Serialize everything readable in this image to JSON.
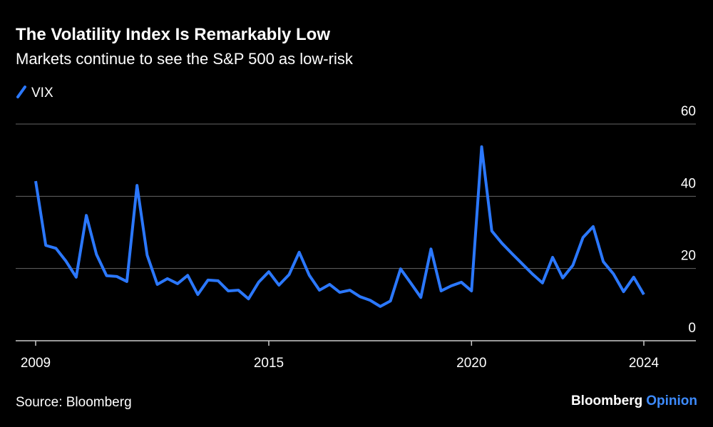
{
  "chart_data": {
    "type": "line",
    "title": "The Volatility Index Is Remarkably Low",
    "subtitle": "Markets continue to see the S&P 500 as low-risk",
    "source": "Source: Bloomberg",
    "brand": [
      "Bloomberg",
      "Opinion"
    ],
    "categories": [
      "2009",
      null,
      null,
      null,
      null,
      null,
      null,
      null,
      null,
      null,
      null,
      null,
      null,
      null,
      null,
      null,
      null,
      null,
      null,
      null,
      null,
      null,
      null,
      "2015",
      null,
      null,
      null,
      null,
      null,
      null,
      null,
      null,
      null,
      null,
      null,
      null,
      null,
      null,
      null,
      null,
      null,
      null,
      null,
      "2020",
      null,
      null,
      null,
      null,
      null,
      null,
      null,
      null,
      null,
      null,
      null,
      null,
      null,
      null,
      null,
      null,
      "2024"
    ],
    "series": [
      {
        "name": "VIX",
        "color": "#2b78ff",
        "values": [
          44.2,
          26.4,
          25.6,
          22,
          17.6,
          34.7,
          23.9,
          18,
          17.8,
          16.4,
          43,
          23.7,
          15.6,
          17.2,
          15.8,
          18.1,
          12.8,
          16.8,
          16.6,
          13.8,
          14,
          11.6,
          16.2,
          19.1,
          15.4,
          18.3,
          24.5,
          18.1,
          14,
          15.6,
          13.4,
          14,
          12.2,
          11.2,
          9.5,
          11,
          19.9,
          16,
          12,
          25.4,
          13.8,
          15.2,
          16.2,
          13.8,
          53.7,
          30.4,
          27,
          24.1,
          21.3,
          18.5,
          16,
          23.1,
          17.4,
          20.9,
          28.6,
          31.6,
          21.9,
          18.5,
          13.6,
          17.6,
          12.8
        ]
      }
    ],
    "ylim": [
      0,
      60
    ],
    "yticks": [
      0,
      20,
      40,
      60
    ],
    "grid": true
  }
}
